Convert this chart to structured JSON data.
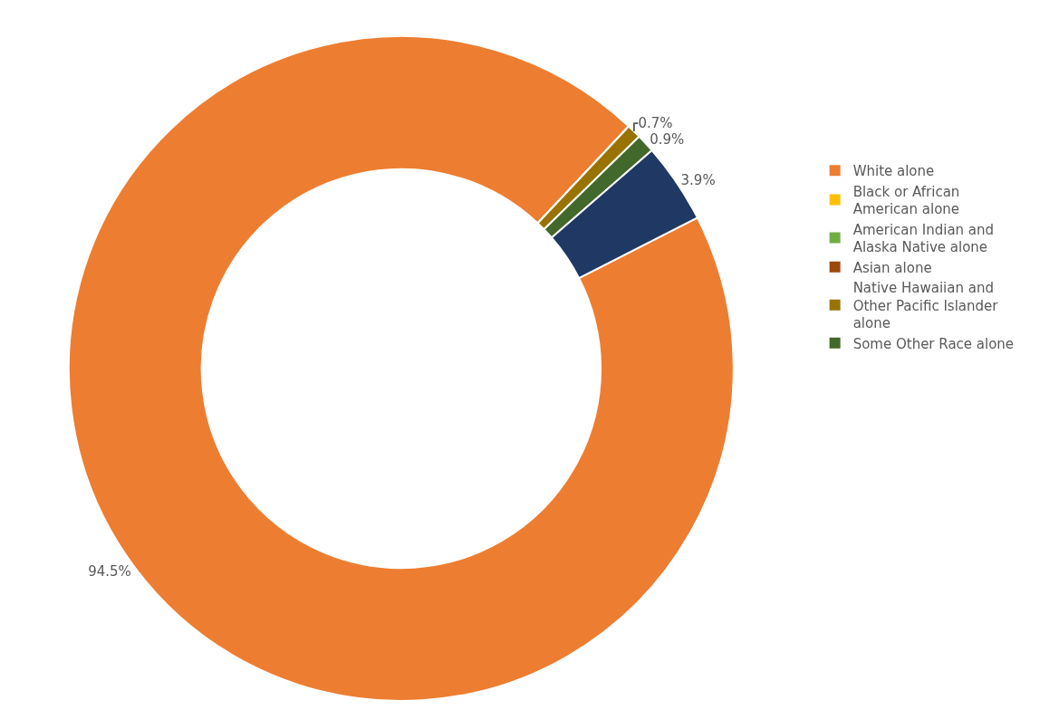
{
  "chart_data": {
    "type": "donut",
    "categories": [
      "White alone",
      "Black or African American alone",
      "American Indian and Alaska Native alone",
      "Asian alone",
      "Native Hawaiian and Other Pacific Islander alone",
      "Some Other Race alone",
      null
    ],
    "values": [
      94.5,
      0,
      0,
      0,
      0.7,
      0.9,
      3.9
    ],
    "colors": [
      "#ed7d31",
      "#ffc000",
      "#70ad47",
      "#9e480e",
      "#997300",
      "#43682b",
      "#1f3864"
    ],
    "value_labels": [
      "94.5%",
      null,
      null,
      null,
      "0.7%",
      "0.9%",
      "3.9%"
    ],
    "legend": "right"
  }
}
